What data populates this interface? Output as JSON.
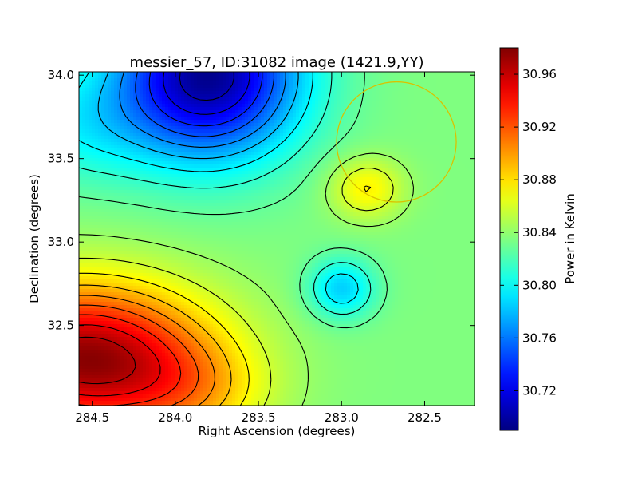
{
  "chart_data": {
    "type": "heatmap",
    "title": "messier_57, ID:31082 image (1421.9,YY)",
    "xlabel": "Right Ascension (degrees)",
    "ylabel": "Declination (degrees)",
    "colorbar_label": "Power in Kelvin",
    "colormap": "jet",
    "x_axis_inverted": true,
    "xlim": [
      284.58,
      282.2
    ],
    "ylim": [
      32.02,
      34.02
    ],
    "x_ticks": [
      284.5,
      284.0,
      283.5,
      283.0,
      282.5
    ],
    "x_tick_labels": [
      "284.5",
      "284.0",
      "283.5",
      "283.0",
      "282.5"
    ],
    "y_ticks": [
      32.5,
      33.0,
      33.5,
      34.0
    ],
    "y_tick_labels": [
      "32.5",
      "33.0",
      "33.5",
      "34.0"
    ],
    "value_range": [
      30.69,
      30.98
    ],
    "colorbar_ticks": [
      30.72,
      30.76,
      30.8,
      30.84,
      30.88,
      30.92,
      30.96
    ],
    "colorbar_tick_labels": [
      "30.72",
      "30.76",
      "30.80",
      "30.84",
      "30.88",
      "30.92",
      "30.96"
    ],
    "features": [
      {
        "kind": "background",
        "value": 30.835
      },
      {
        "kind": "gradient",
        "description": "low in upper-left, high in lower-left"
      },
      {
        "kind": "minimum",
        "x": 283.8,
        "y": 34.0,
        "value": 30.695
      },
      {
        "kind": "maximum",
        "x": 284.55,
        "y": 32.3,
        "value": 30.975
      },
      {
        "kind": "local_maximum",
        "x": 282.85,
        "y": 33.32,
        "value": 30.875
      },
      {
        "kind": "local_minimum",
        "x": 283.0,
        "y": 32.72,
        "value": 30.785
      }
    ],
    "contour_count": 18,
    "annotation_circle": {
      "x": 282.67,
      "y": 33.6,
      "radius_deg": 0.36,
      "color": "#d9c200"
    }
  }
}
